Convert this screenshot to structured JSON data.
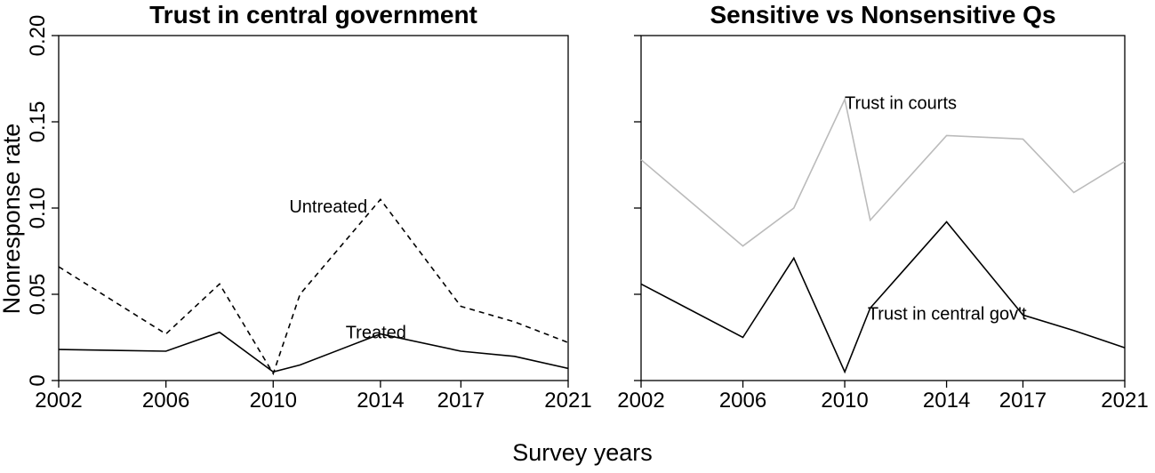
{
  "chart_data": [
    {
      "type": "line",
      "title": "Trust in central government",
      "xlabel": "Survey years",
      "ylabel": "Nonresponse rate",
      "xlim": [
        2002,
        2021
      ],
      "ylim": [
        0,
        0.2
      ],
      "xticks": [
        2002,
        2006,
        2010,
        2014,
        2017,
        2021
      ],
      "xtick_labels": [
        "2002",
        "2006",
        "2010",
        "2014",
        "2017",
        "2021"
      ],
      "yticks": [
        0,
        0.05,
        0.1,
        0.15,
        0.2
      ],
      "ytick_labels": [
        "0",
        "0.05",
        "0.10",
        "0.15",
        "0.20"
      ],
      "grid": false,
      "series": [
        {
          "name": "Untreated",
          "color": "#000000",
          "dash": "dashed",
          "x": [
            2002,
            2006,
            2008,
            2010,
            2011,
            2014,
            2017,
            2019,
            2021
          ],
          "y": [
            0.066,
            0.027,
            0.056,
            0.004,
            0.05,
            0.105,
            0.043,
            0.034,
            0.022
          ]
        },
        {
          "name": "Treated",
          "color": "#000000",
          "dash": "solid",
          "x": [
            2002,
            2006,
            2008,
            2010,
            2011,
            2014,
            2017,
            2019,
            2021
          ],
          "y": [
            0.018,
            0.017,
            0.028,
            0.005,
            0.009,
            0.027,
            0.017,
            0.014,
            0.007
          ]
        }
      ],
      "annotations": [
        {
          "text": "Untreated",
          "x": 2010.6,
          "y": 0.101
        },
        {
          "text": "Treated",
          "x": 2012.7,
          "y": 0.028
        }
      ]
    },
    {
      "type": "line",
      "title": "Sensitive vs Nonsensitive Qs",
      "xlabel": "Survey years",
      "ylabel": "",
      "xlim": [
        2002,
        2021
      ],
      "ylim": [
        0,
        0.2
      ],
      "xticks": [
        2002,
        2006,
        2010,
        2014,
        2017,
        2021
      ],
      "xtick_labels": [
        "2002",
        "2006",
        "2010",
        "2014",
        "2017",
        "2021"
      ],
      "yticks": [
        0,
        0.05,
        0.1,
        0.15,
        0.2
      ],
      "ytick_labels": [],
      "grid": false,
      "series": [
        {
          "name": "Trust in courts",
          "color": "#bbbbbb",
          "dash": "solid",
          "x": [
            2002,
            2006,
            2008,
            2010,
            2011,
            2014,
            2017,
            2019,
            2021
          ],
          "y": [
            0.128,
            0.078,
            0.1,
            0.163,
            0.093,
            0.142,
            0.14,
            0.109,
            0.127
          ]
        },
        {
          "name": "Trust in central gov't",
          "color": "#000000",
          "dash": "solid",
          "x": [
            2002,
            2006,
            2008,
            2010,
            2011,
            2014,
            2017,
            2019,
            2021
          ],
          "y": [
            0.056,
            0.025,
            0.071,
            0.005,
            0.042,
            0.092,
            0.038,
            0.029,
            0.019
          ]
        }
      ],
      "annotations": [
        {
          "text": "Trust in courts",
          "x": 2010.0,
          "y": 0.161
        },
        {
          "text": "Trust in central gov't",
          "x": 2010.9,
          "y": 0.039
        }
      ]
    }
  ],
  "shared": {
    "xlabel": "Survey years",
    "ylabel": "Nonresponse rate"
  }
}
